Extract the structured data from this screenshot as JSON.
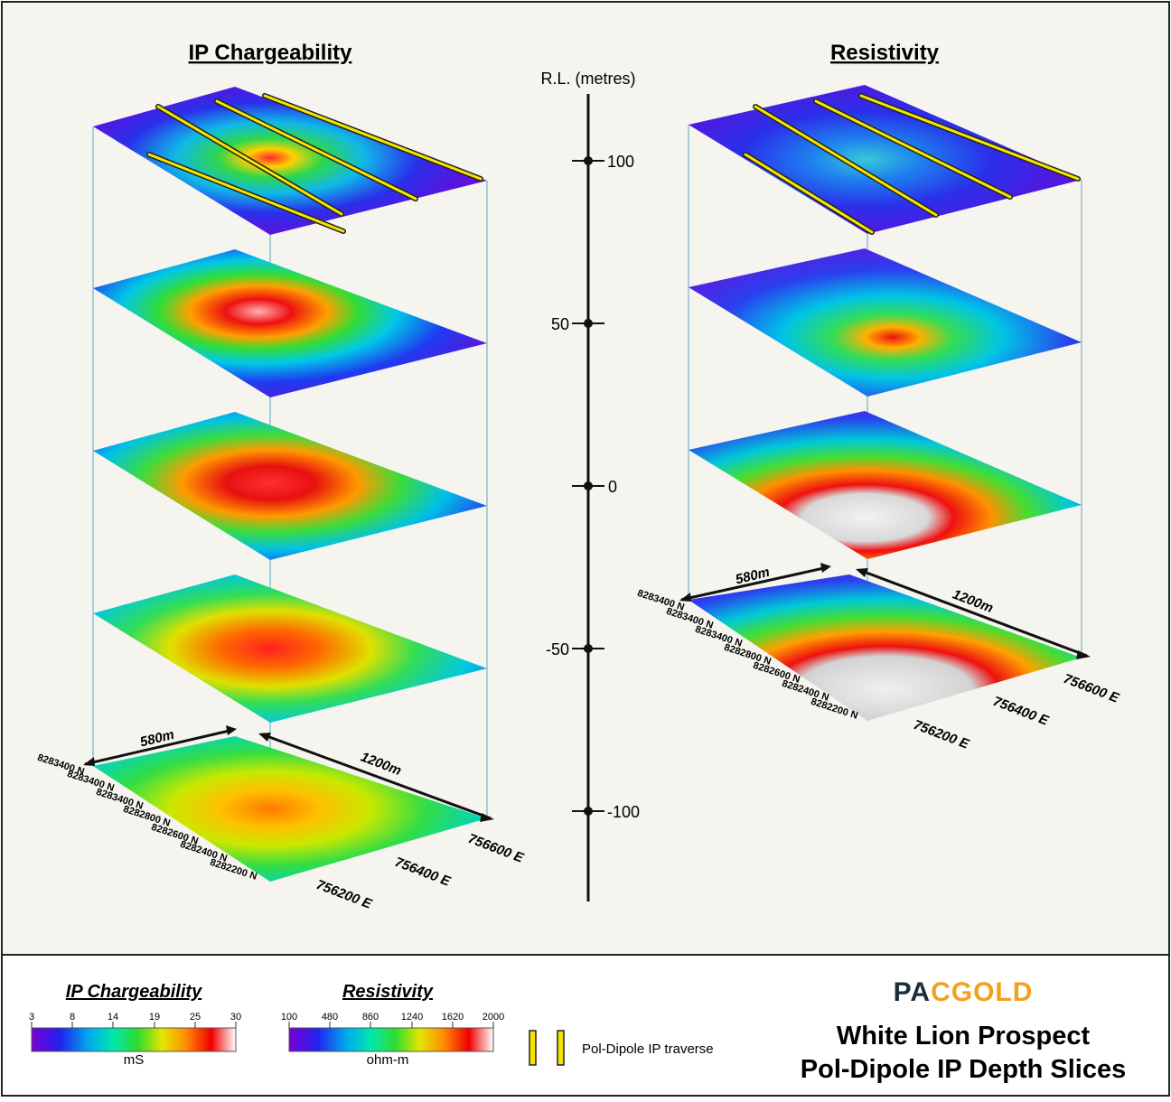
{
  "titles": {
    "ip": "IP Chargeability",
    "resistivity": "Resistivity"
  },
  "scale": {
    "label": "R.L. (metres)",
    "ticks": [
      "100",
      "50",
      "0",
      "-50",
      "-100"
    ]
  },
  "ip_panel": {
    "width_label": "580m",
    "length_label": "1200m",
    "northings": [
      "8283400 N",
      "8283400 N",
      "8283400 N",
      "8282800 N",
      "8282600 N",
      "8282400 N",
      "8282200 N"
    ],
    "eastings": [
      "756600 E",
      "756400 E",
      "756200 E"
    ]
  },
  "res_panel": {
    "width_label": "580m",
    "length_label": "1200m",
    "northings": [
      "8283400 N",
      "8283400 N",
      "8283400 N",
      "8282800 N",
      "8282600 N",
      "8282400 N",
      "8282200 N"
    ],
    "eastings": [
      "756600 E",
      "756400 E",
      "756200 E"
    ]
  },
  "legend": {
    "ip_title": "IP Chargeability",
    "ip_ticks": [
      "3",
      "8",
      "14",
      "19",
      "25",
      "30"
    ],
    "ip_unit": "mS",
    "res_title": "Resistivity",
    "res_ticks": [
      "100",
      "480",
      "860",
      "1240",
      "1620",
      "2000"
    ],
    "res_unit": "ohm-m",
    "traverse_label": "Pol-Dipole IP traverse",
    "traverse_color": "#f5e400"
  },
  "brand": {
    "logo": "PACGOLD",
    "title_line1": "White Lion Prospect",
    "title_line2": "Pol-Dipole IP Depth Slices"
  },
  "colors": {
    "background": "#f5f4ee",
    "border": "#222222",
    "ramp": [
      "#7a00d6",
      "#2222ee",
      "#00aaee",
      "#00e8b0",
      "#2edc2e",
      "#e6e600",
      "#ff8800",
      "#ee0000",
      "#ffffff"
    ],
    "logo_dark": "#1b2f3a",
    "logo_gold": "#f2a11c"
  }
}
